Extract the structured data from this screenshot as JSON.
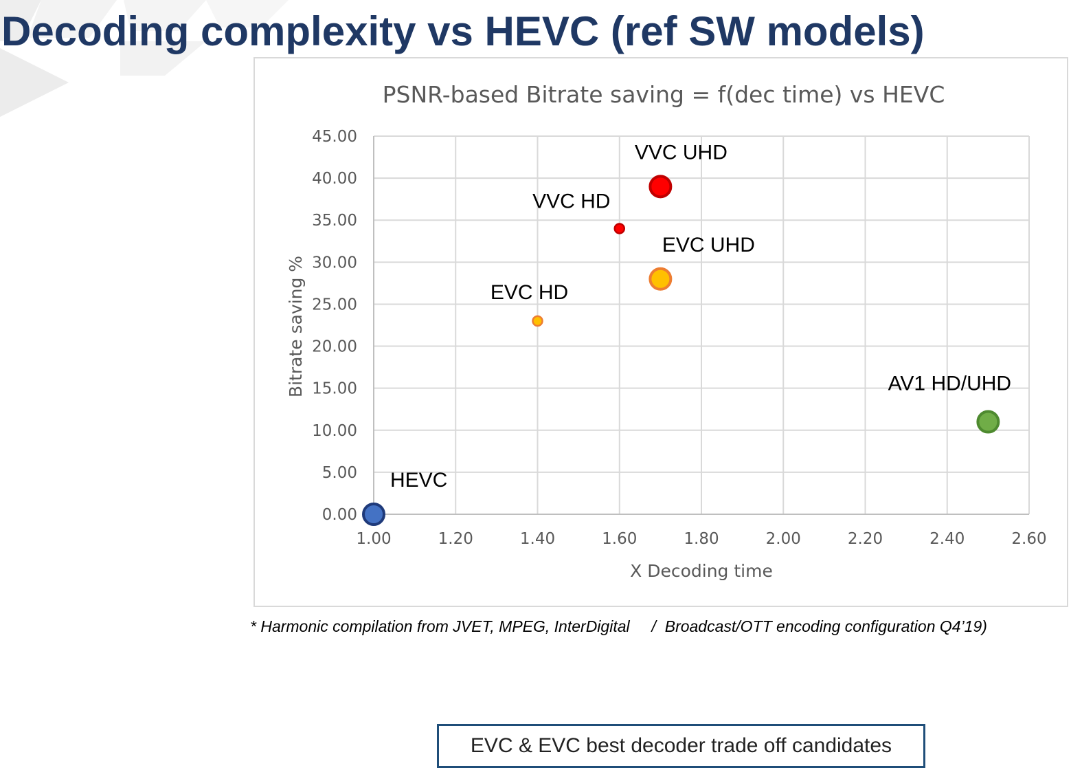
{
  "slide": {
    "title": "Decoding complexity vs HEVC (ref SW models)",
    "footnote": "* Harmonic compilation from JVET, MPEG, InterDigital     /  Broadcast/OTT encoding configuration Q4’19)",
    "callout": "EVC & EVC best decoder trade off candidates"
  },
  "chart_data": {
    "type": "scatter",
    "title": "PSNR-based Bitrate saving = f(dec time) vs HEVC",
    "xlabel": "X Decoding time",
    "ylabel": "Bitrate saving %",
    "xlim": [
      1.0,
      2.6
    ],
    "ylim": [
      0,
      45
    ],
    "x_ticks": [
      "1.00",
      "1.20",
      "1.40",
      "1.60",
      "1.80",
      "2.00",
      "2.20",
      "2.40",
      "2.60"
    ],
    "y_ticks": [
      "0.00",
      "5.00",
      "10.00",
      "15.00",
      "20.00",
      "25.00",
      "30.00",
      "35.00",
      "40.00",
      "45.00"
    ],
    "grid": true,
    "legend": "none",
    "points": [
      {
        "label": "HEVC",
        "x": 1.0,
        "y": 0.0,
        "size": "large",
        "fill": "#4472c4",
        "stroke": "#1f3a7a"
      },
      {
        "label": "EVC HD",
        "x": 1.4,
        "y": 23.0,
        "size": "small",
        "fill": "#ffc000",
        "stroke": "#ed7d31"
      },
      {
        "label": "VVC HD",
        "x": 1.6,
        "y": 34.0,
        "size": "small",
        "fill": "#ff0000",
        "stroke": "#c00000"
      },
      {
        "label": "EVC UHD",
        "x": 1.7,
        "y": 28.0,
        "size": "large",
        "fill": "#ffc000",
        "stroke": "#ed7d31"
      },
      {
        "label": "VVC UHD",
        "x": 1.7,
        "y": 39.0,
        "size": "large",
        "fill": "#ff0000",
        "stroke": "#c00000"
      },
      {
        "label": "AV1 HD/UHD",
        "x": 2.5,
        "y": 11.0,
        "size": "large",
        "fill": "#70ad47",
        "stroke": "#4e8a2f"
      }
    ]
  }
}
